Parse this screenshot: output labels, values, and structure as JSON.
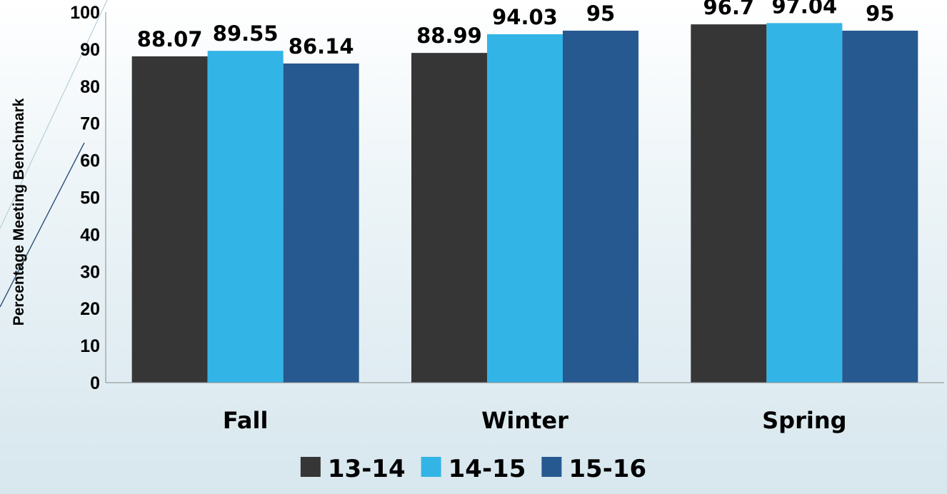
{
  "chart_data": {
    "type": "bar",
    "categories": [
      "Fall",
      "Winter",
      "Spring"
    ],
    "series": [
      {
        "name": "13-14",
        "values": [
          88.07,
          88.99,
          96.7
        ],
        "labels": [
          "88.07",
          "88.99",
          "96.7"
        ],
        "color": "#363636"
      },
      {
        "name": "14-15",
        "values": [
          89.55,
          94.03,
          97.04
        ],
        "labels": [
          "89.55",
          "94.03",
          "97.04"
        ],
        "color": "#33b4e6"
      },
      {
        "name": "15-16",
        "values": [
          86.14,
          95,
          95
        ],
        "labels": [
          "86.14",
          "95",
          "95"
        ],
        "color": "#265990"
      }
    ],
    "ylabel": "Percentage Meeting Benchmark",
    "xlabel": "",
    "ylim": [
      0,
      100
    ],
    "yticks": [
      0,
      10,
      20,
      30,
      40,
      50,
      60,
      70,
      80,
      90,
      100
    ],
    "grid": false,
    "legend": "bottom"
  }
}
